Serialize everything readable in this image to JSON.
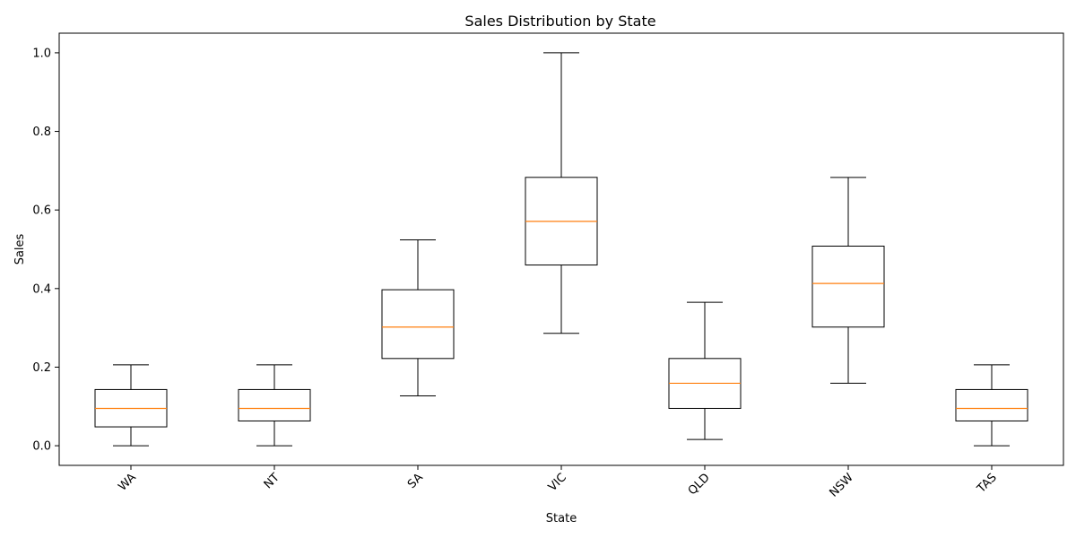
{
  "chart_data": {
    "type": "boxplot",
    "title": "Sales Distribution by State",
    "xlabel": "State",
    "ylabel": "Sales",
    "ylim": [
      -0.05,
      1.05
    ],
    "yticks": [
      "0.0",
      "0.2",
      "0.4",
      "0.6",
      "0.8",
      "1.0"
    ],
    "ytick_values": [
      0.0,
      0.2,
      0.4,
      0.6,
      0.8,
      1.0
    ],
    "grid": false,
    "colors": {
      "box": "#000000",
      "median": "#ff7f0e"
    },
    "categories": [
      "WA",
      "NT",
      "SA",
      "VIC",
      "QLD",
      "NSW",
      "TAS"
    ],
    "boxes": [
      {
        "label": "WA",
        "whisker_low": 0.0,
        "q1": 0.048,
        "median": 0.095,
        "q3": 0.143,
        "whisker_high": 0.206
      },
      {
        "label": "NT",
        "whisker_low": 0.0,
        "q1": 0.063,
        "median": 0.095,
        "q3": 0.143,
        "whisker_high": 0.206
      },
      {
        "label": "SA",
        "whisker_low": 0.127,
        "q1": 0.222,
        "median": 0.302,
        "q3": 0.397,
        "whisker_high": 0.524
      },
      {
        "label": "VIC",
        "whisker_low": 0.286,
        "q1": 0.46,
        "median": 0.571,
        "q3": 0.683,
        "whisker_high": 1.0
      },
      {
        "label": "QLD",
        "whisker_low": 0.016,
        "q1": 0.095,
        "median": 0.159,
        "q3": 0.222,
        "whisker_high": 0.365
      },
      {
        "label": "NSW",
        "whisker_low": 0.159,
        "q1": 0.302,
        "median": 0.413,
        "q3": 0.508,
        "whisker_high": 0.683
      },
      {
        "label": "TAS",
        "whisker_low": 0.0,
        "q1": 0.063,
        "median": 0.095,
        "q3": 0.143,
        "whisker_high": 0.206
      }
    ]
  }
}
